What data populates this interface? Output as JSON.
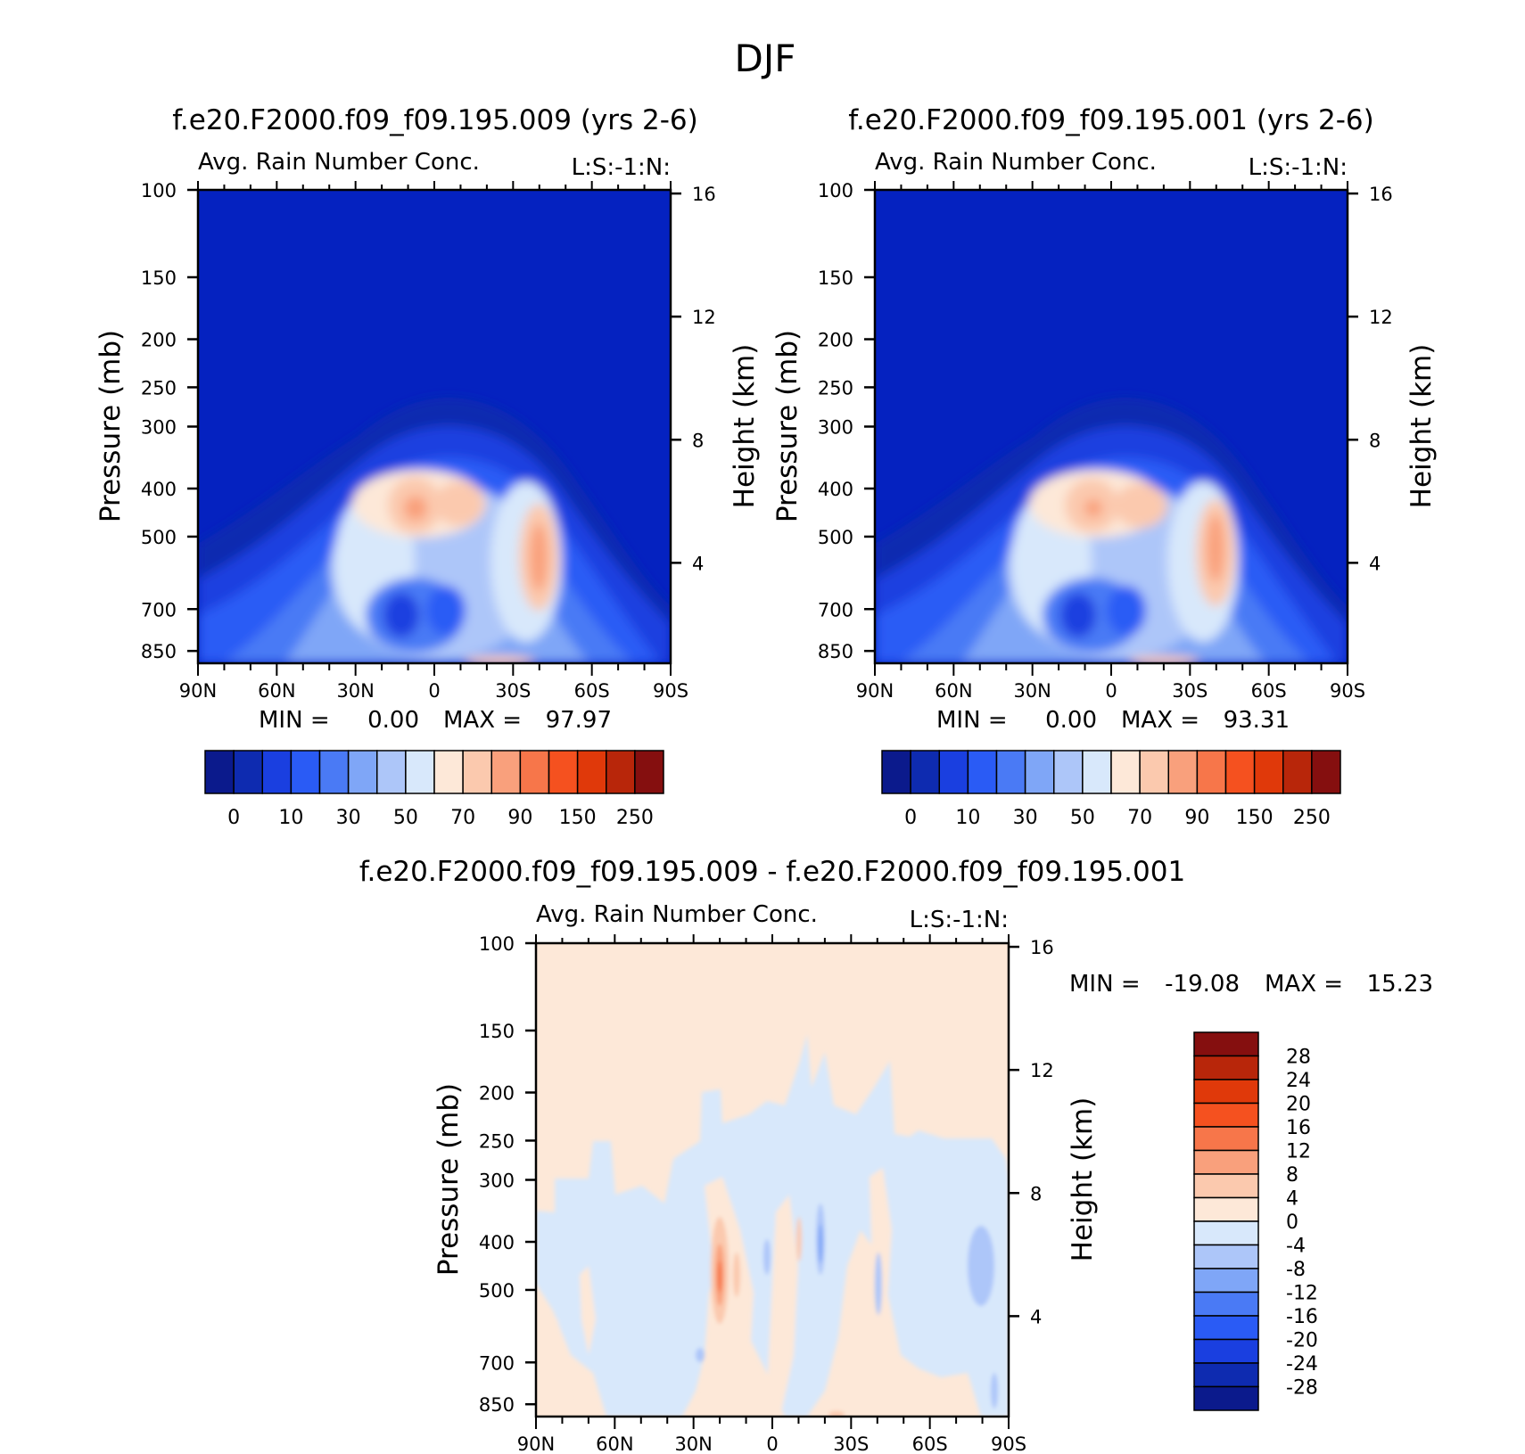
{
  "page_title": "DJF",
  "chart_data": [
    {
      "type": "heatmap",
      "title": "f.e20.F2000.f09_f09.195.009 (yrs 2-6)",
      "subtitle": "Avg. Rain Number Conc.",
      "units_label": "L:S:-1:N:",
      "ylabel": "Pressure (mb)",
      "ylabel_right": "Height (km)",
      "x_ticks": [
        "90N",
        "60N",
        "30N",
        "0",
        "30S",
        "60S",
        "90S"
      ],
      "y_ticks": [
        "100",
        "150",
        "200",
        "250",
        "300",
        "400",
        "500",
        "700",
        "850"
      ],
      "y_right_ticks": [
        "16",
        "12",
        "8",
        "4"
      ],
      "stats": {
        "min_label": "MIN =",
        "min": "0.00",
        "max_label": "MAX =",
        "max": "97.97"
      },
      "max_value": 97.97,
      "colorbar_levels": [
        "0",
        "10",
        "30",
        "50",
        "70",
        "90",
        "150",
        "250"
      ],
      "colorbar_colors": [
        "#0b1a8c",
        "#0e2bb0",
        "#1a3fe0",
        "#2a5bf5",
        "#4a7af5",
        "#7fa6f7",
        "#adc6f9",
        "#d8e8fb",
        "#fde8d8",
        "#fbc9ae",
        "#f9a07c",
        "#f7764a",
        "#f5511f",
        "#e0390a",
        "#b8260a",
        "#850f0f"
      ],
      "background_color": "#0522c0"
    },
    {
      "type": "heatmap",
      "title": "f.e20.F2000.f09_f09.195.001 (yrs 2-6)",
      "subtitle": "Avg. Rain Number Conc.",
      "units_label": "L:S:-1:N:",
      "ylabel": "Pressure (mb)",
      "ylabel_right": "Height (km)",
      "x_ticks": [
        "90N",
        "60N",
        "30N",
        "0",
        "30S",
        "60S",
        "90S"
      ],
      "y_ticks": [
        "100",
        "150",
        "200",
        "250",
        "300",
        "400",
        "500",
        "700",
        "850"
      ],
      "y_right_ticks": [
        "16",
        "12",
        "8",
        "4"
      ],
      "stats": {
        "min_label": "MIN =",
        "min": "0.00",
        "max_label": "MAX =",
        "max": "93.31"
      },
      "max_value": 93.31,
      "colorbar_levels": [
        "0",
        "10",
        "30",
        "50",
        "70",
        "90",
        "150",
        "250"
      ],
      "colorbar_colors": [
        "#0b1a8c",
        "#0e2bb0",
        "#1a3fe0",
        "#2a5bf5",
        "#4a7af5",
        "#7fa6f7",
        "#adc6f9",
        "#d8e8fb",
        "#fde8d8",
        "#fbc9ae",
        "#f9a07c",
        "#f7764a",
        "#f5511f",
        "#e0390a",
        "#b8260a",
        "#850f0f"
      ],
      "background_color": "#0522c0"
    },
    {
      "type": "heatmap",
      "title": "f.e20.F2000.f09_f09.195.009 - f.e20.F2000.f09_f09.195.001",
      "subtitle": "Avg. Rain Number Conc.",
      "units_label": "L:S:-1:N:",
      "ylabel": "Pressure (mb)",
      "ylabel_right": "Height (km)",
      "x_ticks": [
        "90N",
        "60N",
        "30N",
        "0",
        "30S",
        "60S",
        "90S"
      ],
      "y_ticks": [
        "100",
        "150",
        "200",
        "250",
        "300",
        "400",
        "500",
        "700",
        "850"
      ],
      "y_right_ticks": [
        "16",
        "12",
        "8",
        "4"
      ],
      "stats": {
        "min_label": "MIN =",
        "min": "-19.08",
        "max_label": "MAX =",
        "max": "15.23"
      },
      "max_value": 15.23,
      "min_value": -19.08,
      "colorbar_levels": [
        "28",
        "24",
        "20",
        "16",
        "12",
        "8",
        "4",
        "0",
        "-4",
        "-8",
        "-12",
        "-16",
        "-20",
        "-24",
        "-28"
      ],
      "colorbar_colors": [
        "#850f0f",
        "#b8260a",
        "#e0390a",
        "#f5511f",
        "#f7764a",
        "#f9a07c",
        "#fbc9ae",
        "#fde8d8",
        "#d8e8fb",
        "#adc6f9",
        "#7fa6f7",
        "#4a7af5",
        "#2a5bf5",
        "#1a3fe0",
        "#0e2bb0",
        "#0b1a8c"
      ],
      "background_color": "#fde8d8"
    }
  ]
}
